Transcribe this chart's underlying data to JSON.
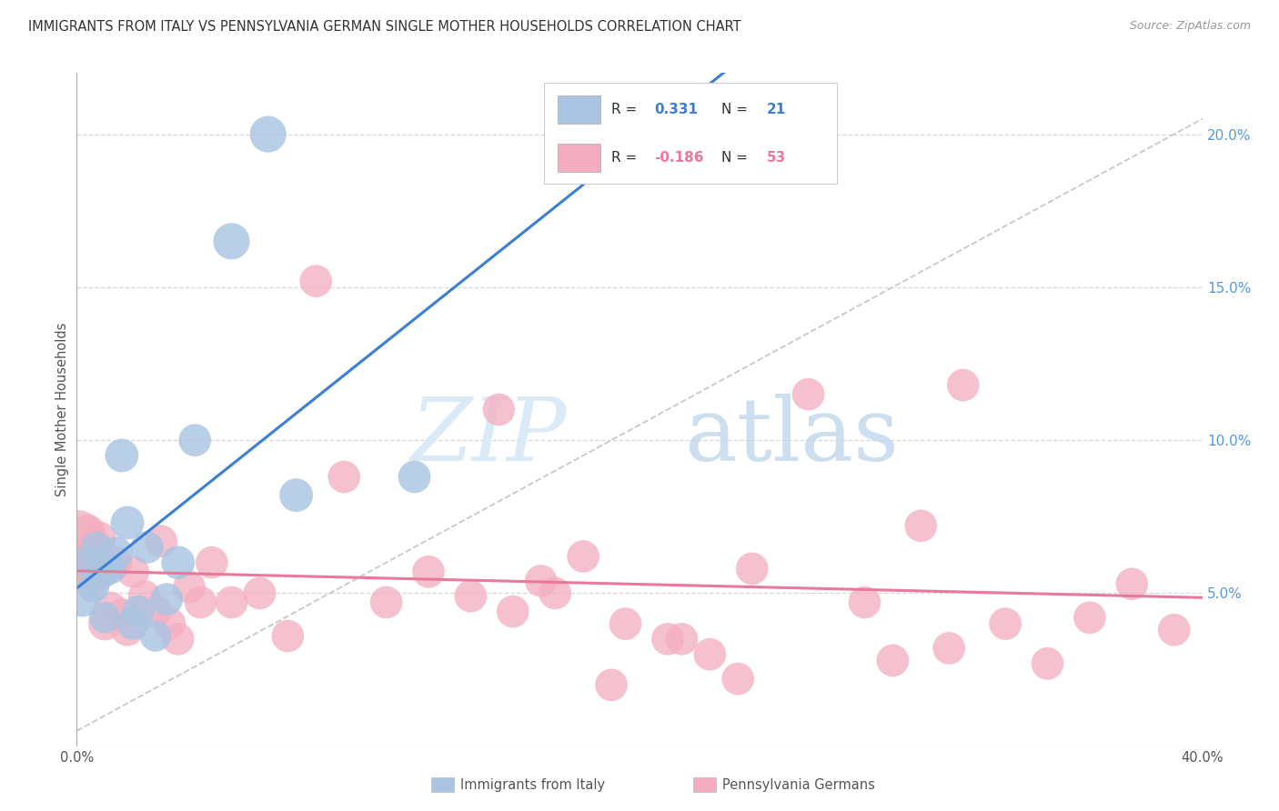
{
  "title": "IMMIGRANTS FROM ITALY VS PENNSYLVANIA GERMAN SINGLE MOTHER HOUSEHOLDS CORRELATION CHART",
  "source": "Source: ZipAtlas.com",
  "ylabel": "Single Mother Households",
  "xlim": [
    0,
    0.4
  ],
  "ylim": [
    0,
    0.22
  ],
  "xtick_left_label": "0.0%",
  "xtick_right_label": "40.0%",
  "yticks_right": [
    0.05,
    0.1,
    0.15,
    0.2
  ],
  "ytick_labels_right": [
    "5.0%",
    "10.0%",
    "15.0%",
    "20.0%"
  ],
  "italy_R": 0.331,
  "italy_N": 21,
  "pagerman_R": -0.186,
  "pagerman_N": 53,
  "italy_color": "#aac4e2",
  "pagerman_color": "#f4adc0",
  "italy_line_color": "#3a7fd5",
  "pagerman_line_color": "#e8799a",
  "diagonal_line_color": "#c8c8c8",
  "background_color": "#ffffff",
  "grid_color": "#d8d8d8",
  "italy_x": [
    0.002,
    0.004,
    0.006,
    0.007,
    0.009,
    0.01,
    0.012,
    0.014,
    0.016,
    0.018,
    0.02,
    0.022,
    0.025,
    0.028,
    0.032,
    0.036,
    0.042,
    0.055,
    0.068,
    0.078,
    0.12
  ],
  "italy_y": [
    0.048,
    0.06,
    0.052,
    0.065,
    0.057,
    0.042,
    0.058,
    0.063,
    0.095,
    0.073,
    0.04,
    0.044,
    0.065,
    0.036,
    0.048,
    0.06,
    0.1,
    0.165,
    0.2,
    0.082,
    0.088
  ],
  "italy_sizes": [
    35,
    28,
    28,
    28,
    32,
    28,
    28,
    32,
    32,
    32,
    30,
    30,
    30,
    28,
    30,
    32,
    30,
    38,
    38,
    32,
    30
  ],
  "pagerman_x": [
    0.0,
    0.002,
    0.003,
    0.004,
    0.005,
    0.006,
    0.007,
    0.008,
    0.01,
    0.012,
    0.014,
    0.016,
    0.018,
    0.02,
    0.024,
    0.028,
    0.03,
    0.033,
    0.036,
    0.04,
    0.044,
    0.048,
    0.055,
    0.065,
    0.075,
    0.085,
    0.095,
    0.11,
    0.125,
    0.14,
    0.155,
    0.165,
    0.18,
    0.195,
    0.21,
    0.225,
    0.24,
    0.26,
    0.28,
    0.3,
    0.315,
    0.33,
    0.345,
    0.36,
    0.375,
    0.39,
    0.15,
    0.17,
    0.19,
    0.215,
    0.235,
    0.29,
    0.31
  ],
  "pagerman_y": [
    0.068,
    0.06,
    0.063,
    0.07,
    0.058,
    0.055,
    0.065,
    0.068,
    0.04,
    0.045,
    0.06,
    0.043,
    0.038,
    0.057,
    0.049,
    0.044,
    0.067,
    0.04,
    0.035,
    0.052,
    0.047,
    0.06,
    0.047,
    0.05,
    0.036,
    0.152,
    0.088,
    0.047,
    0.057,
    0.049,
    0.044,
    0.054,
    0.062,
    0.04,
    0.035,
    0.03,
    0.058,
    0.115,
    0.047,
    0.072,
    0.118,
    0.04,
    0.027,
    0.042,
    0.053,
    0.038,
    0.11,
    0.05,
    0.02,
    0.035,
    0.022,
    0.028,
    0.032
  ],
  "pagerman_sizes": [
    90,
    38,
    35,
    35,
    35,
    35,
    32,
    32,
    32,
    32,
    30,
    30,
    30,
    30,
    30,
    30,
    30,
    30,
    30,
    30,
    30,
    30,
    30,
    30,
    30,
    30,
    30,
    30,
    30,
    30,
    30,
    30,
    30,
    30,
    30,
    30,
    30,
    30,
    30,
    30,
    30,
    30,
    30,
    30,
    30,
    30,
    30,
    30,
    30,
    30,
    30,
    30,
    30
  ],
  "watermark_zip": "ZIP",
  "watermark_atlas": "atlas",
  "title_fontsize": 10.5,
  "legend_r_label": "R = ",
  "legend_n_label": "N = ",
  "legend_italy_r": "0.331",
  "legend_italy_n": "21",
  "legend_pg_r": "-0.186",
  "legend_pg_n": "53",
  "bottom_legend_italy": "Immigrants from Italy",
  "bottom_legend_pg": "Pennsylvania Germans"
}
